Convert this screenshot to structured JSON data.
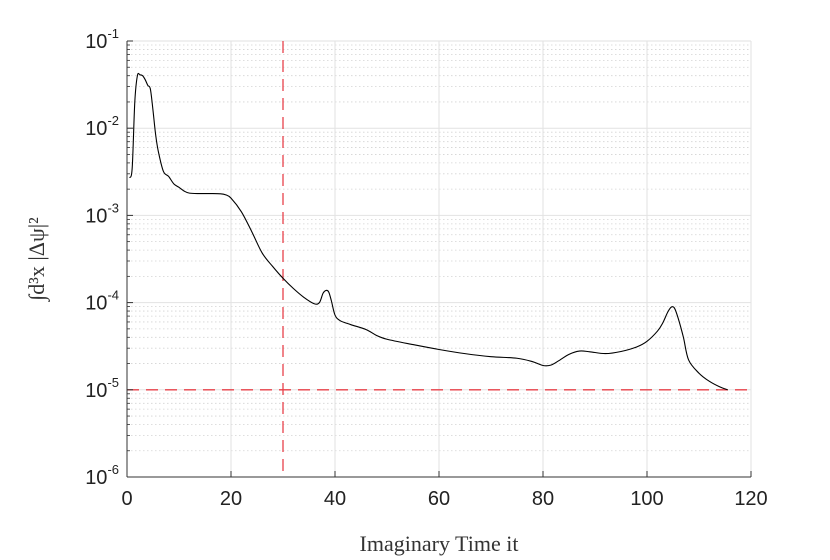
{
  "chart_data": {
    "type": "line",
    "xlabel": "Imaginary Time it",
    "ylabel": "∫d³x |Δψ|²",
    "xlim": [
      0,
      120
    ],
    "ylim": [
      1e-06,
      0.1
    ],
    "yscale": "log",
    "grid": true,
    "x_ticks": [
      0,
      20,
      40,
      60,
      80,
      100,
      120
    ],
    "x_tick_labels": [
      "0",
      "20",
      "40",
      "60",
      "80",
      "100",
      "120"
    ],
    "y_ticks": [
      {
        "value": 1e-06,
        "base": "10",
        "exp": "-6"
      },
      {
        "value": 1e-05,
        "base": "10",
        "exp": "-5"
      },
      {
        "value": 0.0001,
        "base": "10",
        "exp": "-4"
      },
      {
        "value": 0.001,
        "base": "10",
        "exp": "-3"
      },
      {
        "value": 0.01,
        "base": "10",
        "exp": "-2"
      },
      {
        "value": 0.1,
        "base": "10",
        "exp": "-1"
      }
    ],
    "series": [
      {
        "color": "#000000",
        "x": [
          0.5,
          1.0,
          1.5,
          2.0,
          2.5,
          3.0,
          3.5,
          4.0,
          4.5,
          5.0,
          5.5,
          6.0,
          7.0,
          8.0,
          9.0,
          10.0,
          11.0,
          12.0,
          14.0,
          16.0,
          18.0,
          19.0,
          20.0,
          22.0,
          24.0,
          26.0,
          28.0,
          30.0,
          32.0,
          34.0,
          36.0,
          37.0,
          37.7,
          38.3,
          38.8,
          39.3,
          40.0,
          41.0,
          43.0,
          46.0,
          48.0,
          50.0,
          55.0,
          60.0,
          65.0,
          70.0,
          75.0,
          78.0,
          80.0,
          81.5,
          83.0,
          85.0,
          87.0,
          89.0,
          92.0,
          95.0,
          98.0,
          100.0,
          102.0,
          103.0,
          104.0,
          104.7,
          105.3,
          106.0,
          107.0,
          108.0,
          110.0,
          112.0,
          114.0,
          115.5
        ],
        "y": [
          0.0027,
          0.0035,
          0.02,
          0.04,
          0.041,
          0.04,
          0.036,
          0.031,
          0.028,
          0.016,
          0.0085,
          0.0055,
          0.0032,
          0.0028,
          0.0023,
          0.0021,
          0.0019,
          0.0018,
          0.00178,
          0.00178,
          0.00177,
          0.00172,
          0.00158,
          0.0011,
          0.00065,
          0.00037,
          0.00026,
          0.00019,
          0.000145,
          0.000115,
          9.7e-05,
          0.0001,
          0.000128,
          0.000138,
          0.000132,
          0.000105,
          7.2e-05,
          6.2e-05,
          5.6e-05,
          4.9e-05,
          4.2e-05,
          3.8e-05,
          3.3e-05,
          2.9e-05,
          2.6e-05,
          2.4e-05,
          2.3e-05,
          2.1e-05,
          1.9e-05,
          1.92e-05,
          2.15e-05,
          2.55e-05,
          2.78e-05,
          2.73e-05,
          2.6e-05,
          2.75e-05,
          3.1e-05,
          3.6e-05,
          4.7e-05,
          5.8e-05,
          7.8e-05,
          8.9e-05,
          8.6e-05,
          6.6e-05,
          4e-05,
          2.2e-05,
          1.55e-05,
          1.25e-05,
          1.08e-05,
          1e-05
        ]
      }
    ],
    "reference_lines": [
      {
        "orientation": "vertical",
        "value": 30,
        "color": "#e8414a",
        "style": "dashed"
      },
      {
        "orientation": "horizontal",
        "value": 1e-05,
        "color": "#e8414a",
        "style": "dashed"
      }
    ]
  }
}
